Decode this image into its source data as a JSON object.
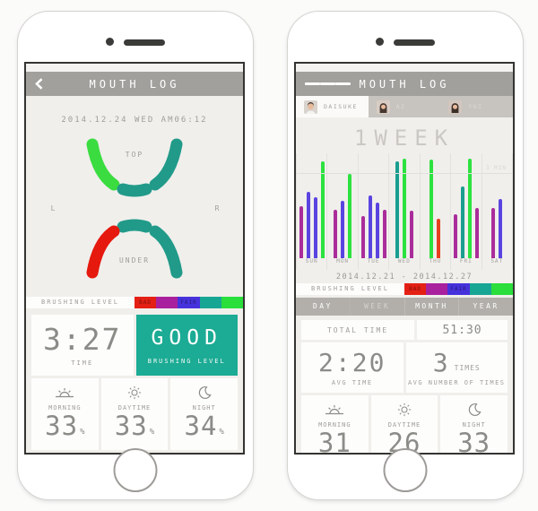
{
  "colors": {
    "header_gray": "#a2a09d",
    "screen_bg": "#f0efec",
    "card_white": "#fdfdfc",
    "teal": "#1cab94",
    "bright_green": "#3bdc40",
    "red": "#e6190e",
    "digit_gray": "#8b8b88",
    "scale": [
      "#e42014",
      "#a9209e",
      "#4632dc",
      "#18a694",
      "#2ade3c"
    ]
  },
  "left_phone": {
    "header": {
      "title": "MOUTH LOG",
      "back_icon": "chevron-left"
    },
    "datetime": "2014.12.24 WED AM06:12",
    "mouth": {
      "labels": {
        "top": "TOP",
        "under": "UNDER",
        "left": "L",
        "right": "R"
      },
      "segments": {
        "top_left": "#3bdc40",
        "top_center": "#219a89",
        "top_right": "#219a89",
        "under_center": "#219a89",
        "under_left": "#e6190e",
        "under_right": "#219a89"
      }
    },
    "brushing_bar": {
      "label": "BRUSHING LEVEL",
      "bad": "BAD",
      "fair": "FAIR"
    },
    "time_card": {
      "value": "3:27",
      "label": "TIME"
    },
    "level_card": {
      "value": "GOOD",
      "label": "BRUSHING LEVEL"
    },
    "periods": [
      {
        "icon": "sunrise",
        "name": "MORNING",
        "value": "33",
        "unit": "%"
      },
      {
        "icon": "sun",
        "name": "DAYTIME",
        "value": "33",
        "unit": "%"
      },
      {
        "icon": "moon",
        "name": "NIGHT",
        "value": "34",
        "unit": "%"
      }
    ]
  },
  "right_phone": {
    "header": {
      "title": "MOUTH LOG",
      "menu_icon": "hamburger"
    },
    "profiles": [
      {
        "name": "DAISUKE",
        "active": true
      },
      {
        "name": "AI",
        "active": false
      },
      {
        "name": "YUI",
        "active": false
      }
    ],
    "period_title": "1WEEK",
    "chart_data": {
      "type": "bar",
      "title": "1WEEK",
      "categories": [
        "SUN",
        "MON",
        "TUE",
        "WED",
        "THU",
        "FRI",
        "SAT"
      ],
      "ylabel": "brushing level",
      "ylim": [
        0,
        100
      ],
      "grid": true,
      "gridline_label": "3 MIN",
      "groups": [
        {
          "day": "SUN",
          "bars": [
            {
              "color": "#aa2d9a",
              "value": 50
            },
            {
              "color": "#5a44e0",
              "value": 63
            },
            {
              "color": "#5a44e0",
              "value": 58
            },
            {
              "color": "#2ce23f",
              "value": 92
            }
          ]
        },
        {
          "day": "MON",
          "bars": [
            {
              "color": "#aa2d9a",
              "value": 46
            },
            {
              "color": "#5a44e0",
              "value": 55
            },
            {
              "color": "#2ce23f",
              "value": 80
            }
          ]
        },
        {
          "day": "TUE",
          "bars": [
            {
              "color": "#aa2d9a",
              "value": 40
            },
            {
              "color": "#5a44e0",
              "value": 60
            },
            {
              "color": "#5a44e0",
              "value": 53
            },
            {
              "color": "#aa2d9a",
              "value": 46
            }
          ]
        },
        {
          "day": "WED",
          "bars": [
            {
              "color": "#1a9e90",
              "value": 92
            },
            {
              "color": "#2ce23f",
              "value": 95
            },
            {
              "color": "#aa2d9a",
              "value": 45
            }
          ]
        },
        {
          "day": "THU",
          "bars": [
            {
              "color": "#2ce23f",
              "value": 94
            },
            {
              "color": "#e8401f",
              "value": 38
            }
          ]
        },
        {
          "day": "FRI",
          "bars": [
            {
              "color": "#aa2d9a",
              "value": 42
            },
            {
              "color": "#1a9e90",
              "value": 68
            },
            {
              "color": "#2ce23f",
              "value": 95
            },
            {
              "color": "#aa2d9a",
              "value": 48
            }
          ]
        },
        {
          "day": "SAT",
          "bars": [
            {
              "color": "#aa2d9a",
              "value": 48
            },
            {
              "color": "#5a44e0",
              "value": 56
            }
          ]
        }
      ]
    },
    "date_range": "2014.12.21 - 2014.12.27",
    "brushing_bar": {
      "label": "BRUSHING LEVEL",
      "bad": "BAD",
      "fair": "FAIR"
    },
    "range_tabs": [
      {
        "label": "DAY",
        "active": false
      },
      {
        "label": "WEEK",
        "active": true
      },
      {
        "label": "MONTH",
        "active": false
      },
      {
        "label": "YEAR",
        "active": false
      }
    ],
    "total_time": {
      "label": "TOTAL TIME",
      "value": "51:30"
    },
    "avg_time": {
      "value": "2:20",
      "label": "AVG TIME"
    },
    "avg_count": {
      "value": "3",
      "unit": "TIMES",
      "label": "AVG NUMBER OF TIMES"
    },
    "periods": [
      {
        "icon": "sunrise",
        "name": "MORNING",
        "value": "31"
      },
      {
        "icon": "sun",
        "name": "DAYTIME",
        "value": "26"
      },
      {
        "icon": "moon",
        "name": "NIGHT",
        "value": "33"
      }
    ]
  }
}
